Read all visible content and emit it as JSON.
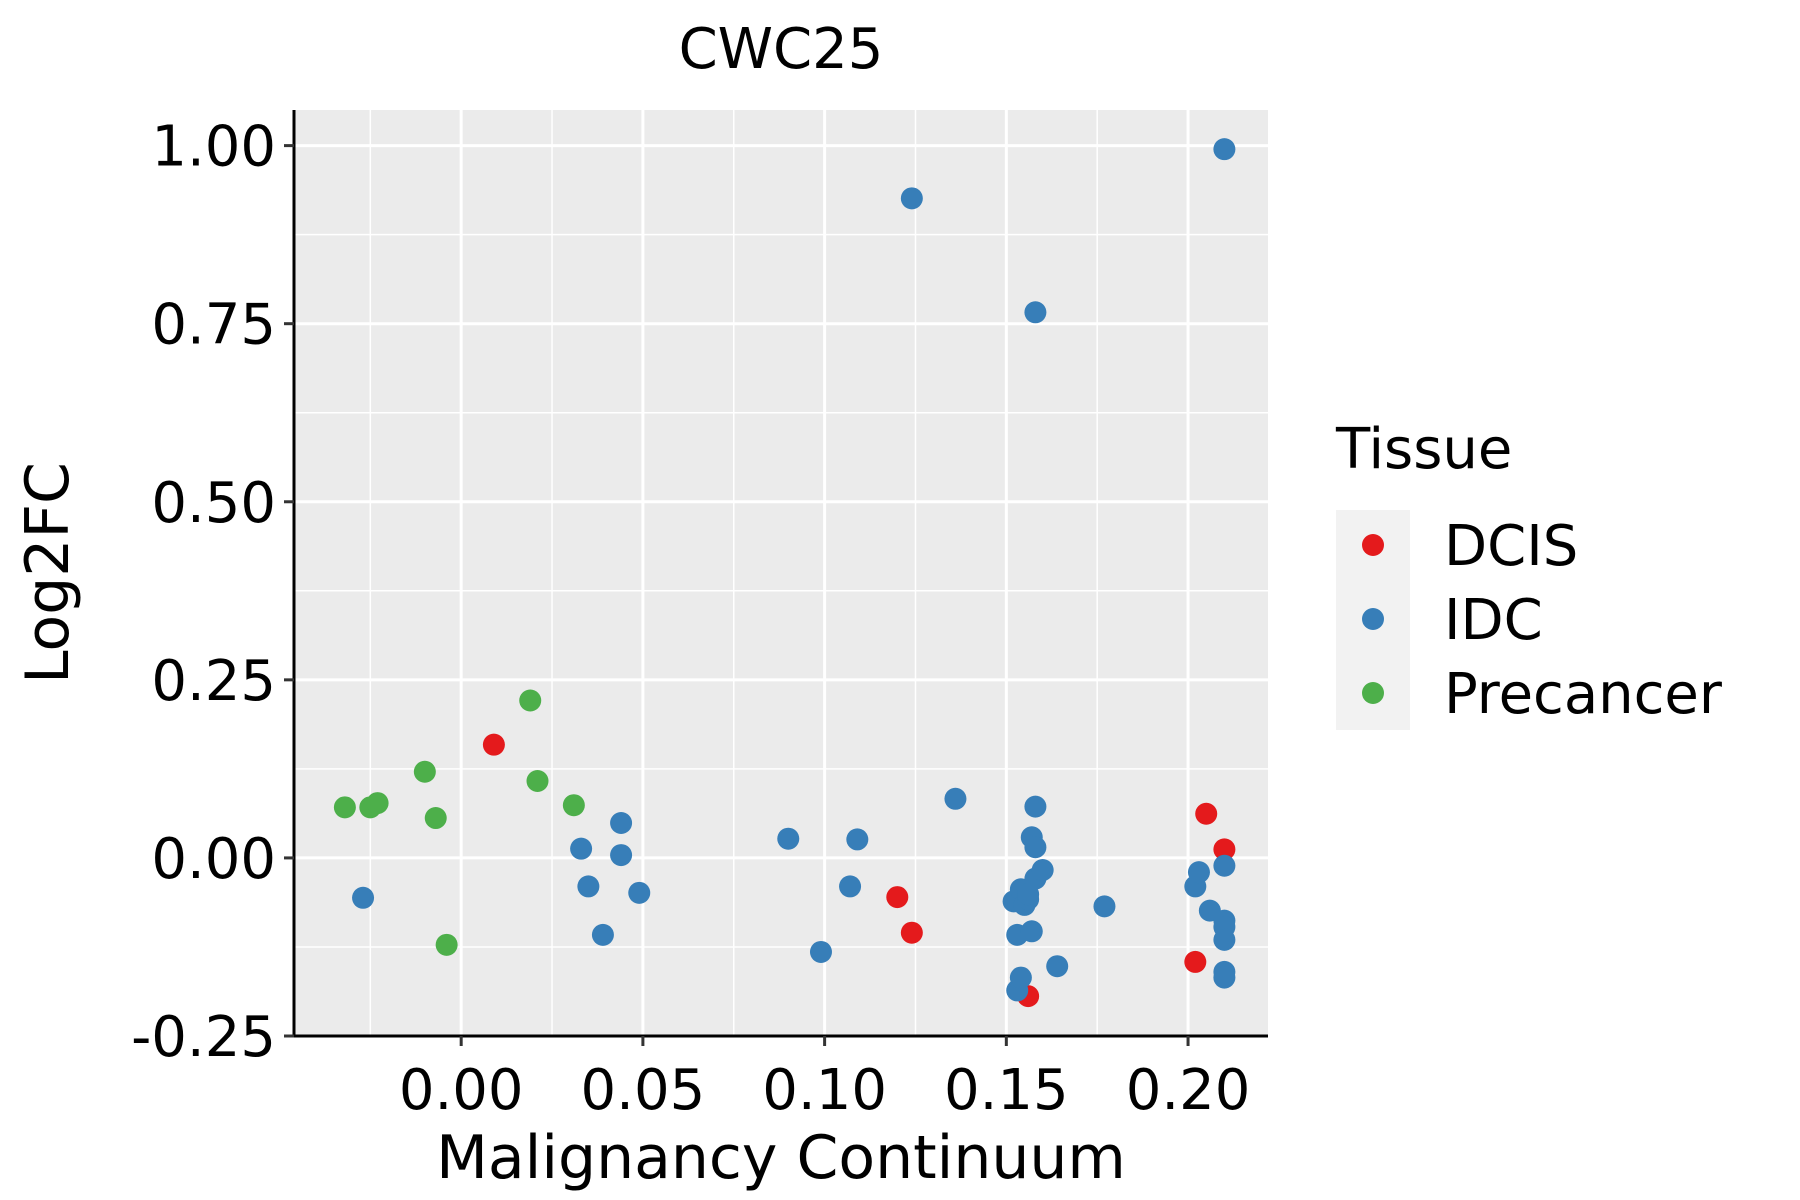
{
  "chart_data": {
    "type": "scatter",
    "title": "CWC25",
    "xlabel": "Malignancy Continuum",
    "ylabel": "Log2FC",
    "xlim": [
      -0.046,
      0.222
    ],
    "ylim": [
      -0.25,
      1.05
    ],
    "xticks": [
      0.0,
      0.05,
      0.1,
      0.15,
      0.2
    ],
    "xtick_labels": [
      "0.00",
      "0.05",
      "0.10",
      "0.15",
      "0.20"
    ],
    "yticks": [
      -0.25,
      0.0,
      0.25,
      0.5,
      0.75,
      1.0
    ],
    "ytick_labels": [
      "-0.25",
      "0.00",
      "0.25",
      "0.50",
      "0.75",
      "1.00"
    ],
    "grid": true,
    "legend": {
      "title": "Tissue",
      "placement": "right",
      "entries": [
        "DCIS",
        "IDC",
        "Precancer"
      ]
    },
    "series": [
      {
        "name": "DCIS",
        "color": "#E41A1C",
        "points": [
          {
            "x": 0.009,
            "y": 0.159
          },
          {
            "x": 0.12,
            "y": -0.055
          },
          {
            "x": 0.124,
            "y": -0.105
          },
          {
            "x": 0.156,
            "y": -0.194
          },
          {
            "x": 0.202,
            "y": -0.146
          },
          {
            "x": 0.205,
            "y": 0.062
          },
          {
            "x": 0.21,
            "y": 0.012
          }
        ]
      },
      {
        "name": "IDC",
        "color": "#377EB8",
        "points": [
          {
            "x": -0.027,
            "y": -0.056
          },
          {
            "x": 0.033,
            "y": 0.013
          },
          {
            "x": 0.035,
            "y": -0.04
          },
          {
            "x": 0.039,
            "y": -0.108
          },
          {
            "x": 0.044,
            "y": 0.049
          },
          {
            "x": 0.044,
            "y": 0.004
          },
          {
            "x": 0.049,
            "y": -0.049
          },
          {
            "x": 0.09,
            "y": 0.027
          },
          {
            "x": 0.099,
            "y": -0.132
          },
          {
            "x": 0.107,
            "y": -0.04
          },
          {
            "x": 0.109,
            "y": 0.026
          },
          {
            "x": 0.124,
            "y": 0.926
          },
          {
            "x": 0.136,
            "y": 0.083
          },
          {
            "x": 0.152,
            "y": -0.061
          },
          {
            "x": 0.153,
            "y": -0.108
          },
          {
            "x": 0.153,
            "y": -0.186
          },
          {
            "x": 0.154,
            "y": -0.168
          },
          {
            "x": 0.154,
            "y": -0.044
          },
          {
            "x": 0.155,
            "y": -0.066
          },
          {
            "x": 0.156,
            "y": -0.058
          },
          {
            "x": 0.156,
            "y": -0.051
          },
          {
            "x": 0.157,
            "y": -0.103
          },
          {
            "x": 0.157,
            "y": 0.029
          },
          {
            "x": 0.158,
            "y": -0.029
          },
          {
            "x": 0.158,
            "y": 0.015
          },
          {
            "x": 0.158,
            "y": 0.072
          },
          {
            "x": 0.158,
            "y": 0.766
          },
          {
            "x": 0.16,
            "y": -0.017
          },
          {
            "x": 0.164,
            "y": -0.152
          },
          {
            "x": 0.177,
            "y": -0.068
          },
          {
            "x": 0.202,
            "y": -0.04
          },
          {
            "x": 0.203,
            "y": -0.02
          },
          {
            "x": 0.206,
            "y": -0.074
          },
          {
            "x": 0.21,
            "y": 0.995
          },
          {
            "x": 0.21,
            "y": -0.011
          },
          {
            "x": 0.21,
            "y": -0.088
          },
          {
            "x": 0.21,
            "y": -0.097
          },
          {
            "x": 0.21,
            "y": -0.115
          },
          {
            "x": 0.21,
            "y": -0.16
          },
          {
            "x": 0.21,
            "y": -0.168
          }
        ]
      },
      {
        "name": "Precancer",
        "color": "#4DAF4A",
        "points": [
          {
            "x": -0.032,
            "y": 0.071
          },
          {
            "x": -0.025,
            "y": 0.071
          },
          {
            "x": -0.023,
            "y": 0.077
          },
          {
            "x": -0.01,
            "y": 0.121
          },
          {
            "x": -0.007,
            "y": 0.056
          },
          {
            "x": -0.004,
            "y": -0.122
          },
          {
            "x": 0.019,
            "y": 0.221
          },
          {
            "x": 0.021,
            "y": 0.108
          },
          {
            "x": 0.031,
            "y": 0.074
          }
        ]
      }
    ]
  }
}
